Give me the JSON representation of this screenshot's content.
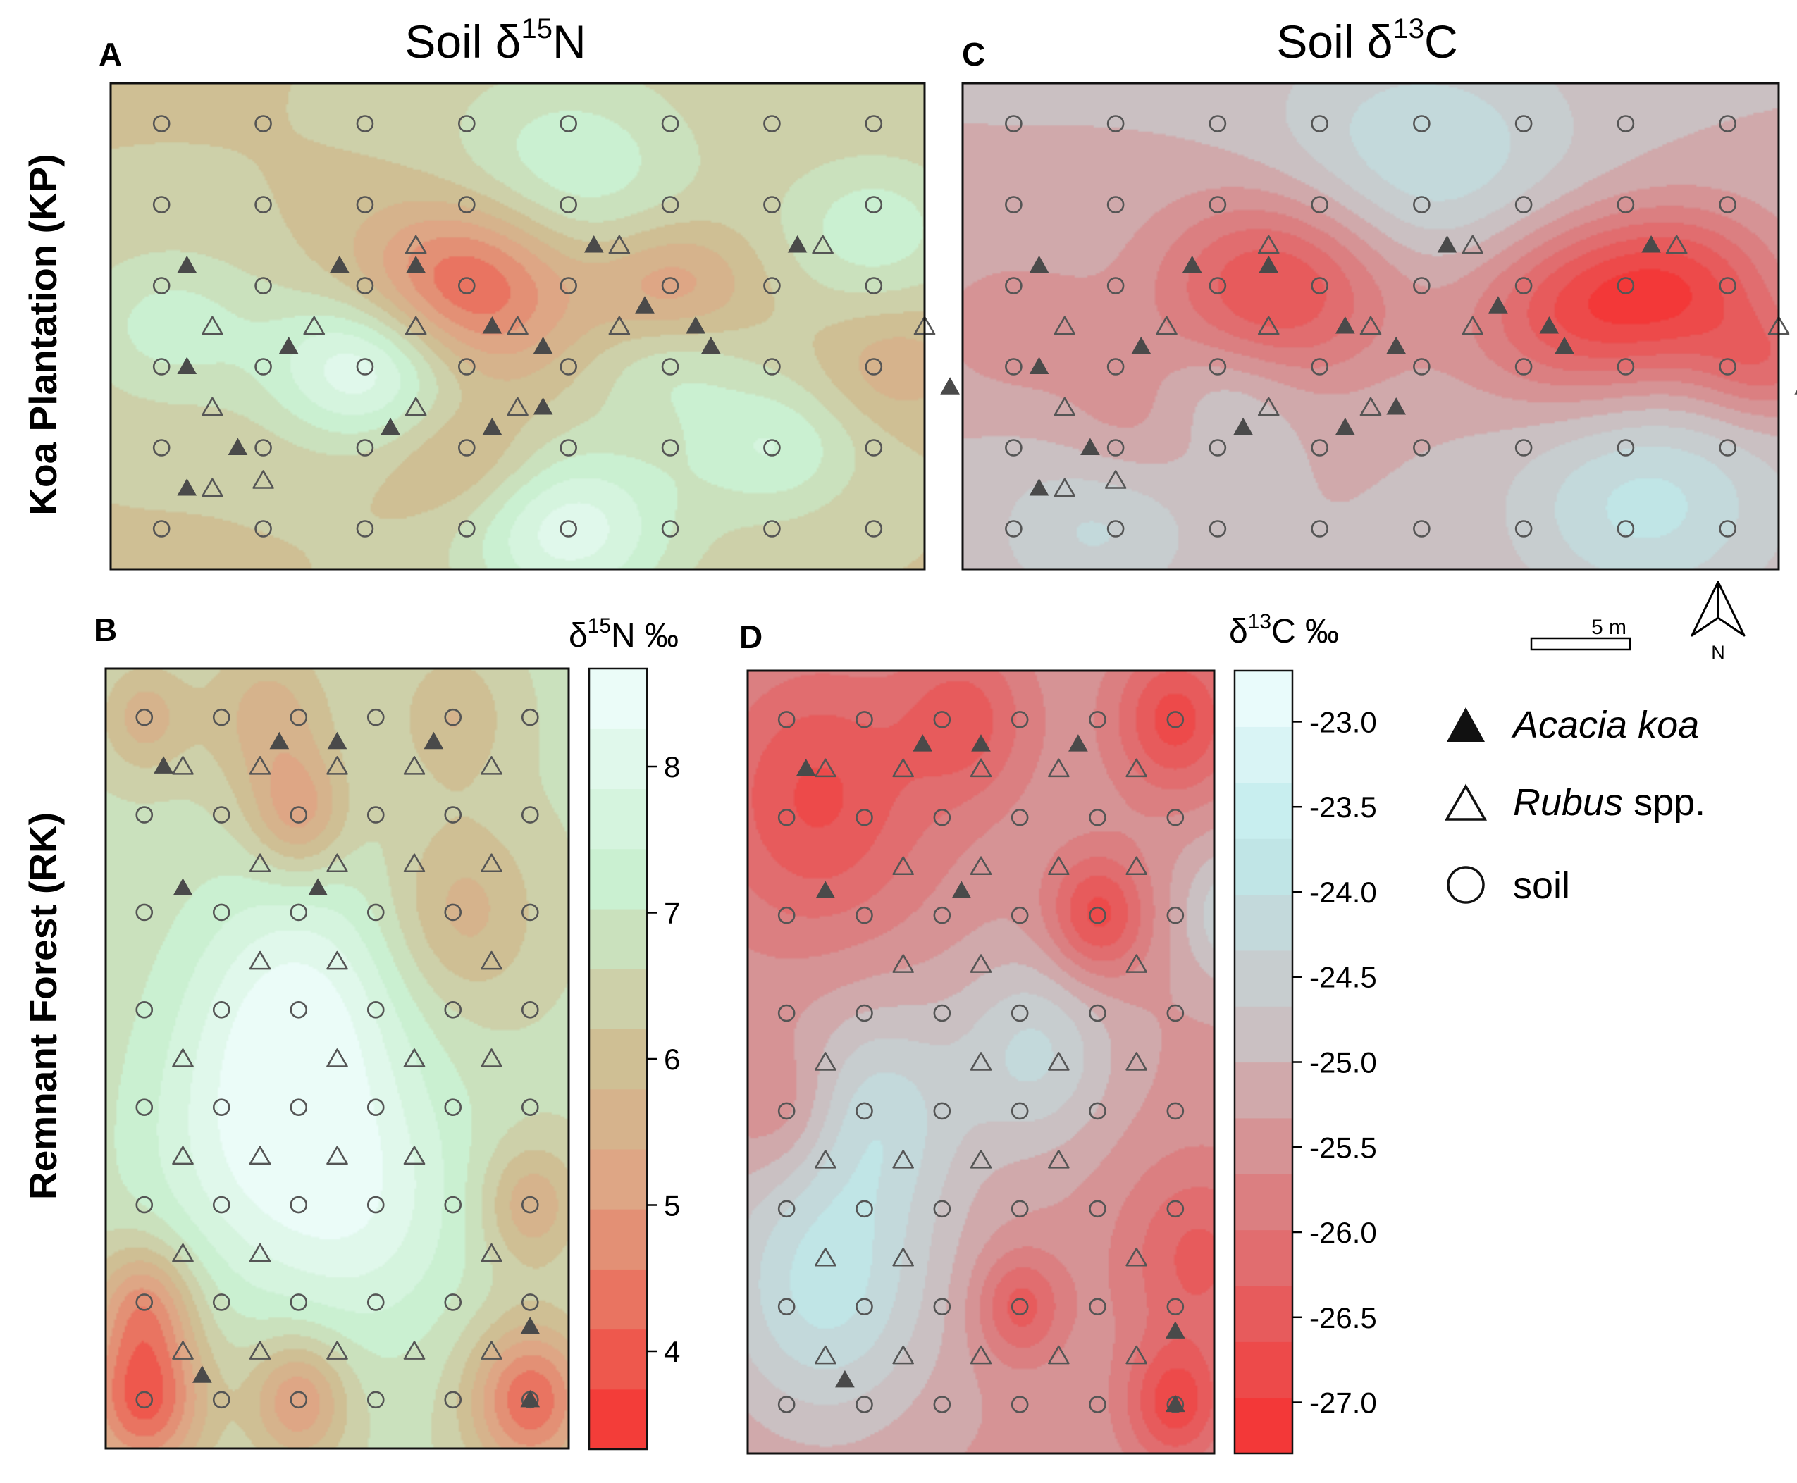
{
  "figure": {
    "row_labels": {
      "top": "Koa Plantation (KP)",
      "bottom": "Remnant Forest (RK)"
    },
    "titles": {
      "n15": {
        "prefix": "Soil δ",
        "sup": "15",
        "suffix": "N"
      },
      "c13": {
        "prefix": "Soil δ",
        "sup": "13",
        "suffix": "C"
      }
    },
    "colorbars": {
      "n15": {
        "prefix": "δ",
        "sup": "15",
        "suffix": "N ‰",
        "ticks": [
          "4",
          "5",
          "6",
          "7",
          "8"
        ],
        "tick_values": [
          4,
          5,
          6,
          7,
          8
        ],
        "range": [
          3.33,
          8.67
        ],
        "bands": 13
      },
      "c13": {
        "prefix": "δ",
        "sup": "13",
        "suffix": "C ‰",
        "ticks": [
          "-23.0",
          "-23.5",
          "-24.0",
          "-24.5",
          "-25.0",
          "-25.5",
          "-26.0",
          "-26.5",
          "-27.0"
        ],
        "tick_values": [
          -23.0,
          -23.5,
          -24.0,
          -24.5,
          -25.0,
          -25.5,
          -26.0,
          -26.5,
          -27.0
        ],
        "range": [
          -27.3,
          -22.7
        ],
        "bands": 14
      }
    },
    "scale_bar": {
      "label": "5 m"
    },
    "north_arrow": {
      "label": "N"
    },
    "legend": [
      {
        "symbol": "filled-triangle",
        "italic": "Acacia koa",
        "plain": ""
      },
      {
        "symbol": "open-triangle",
        "italic": "Rubus",
        "plain": " spp."
      },
      {
        "symbol": "open-circle",
        "italic": "",
        "plain": "soil"
      }
    ],
    "colors": {
      "low_red": "#f62f2f",
      "mid_tan": "#cfbf94",
      "mid_green": "#c8efcf",
      "high_white": "#f1fefe",
      "mid_grey": "#c9c4c6",
      "mid_cyan": "#bfeaeb",
      "marker": "#555555",
      "frame": "#111111"
    }
  },
  "chart_data": [
    {
      "panel": "A",
      "type": "heatmap",
      "variable": "Soil δ15N",
      "site": "Koa Plantation (KP)",
      "grid_cols": 8,
      "grid_rows": 6,
      "base_value": 6.2,
      "anomalies": [
        {
          "col": 3.0,
          "row": 2.0,
          "value": 3.9,
          "spread": 0.75
        },
        {
          "col": 5.0,
          "row": 2.0,
          "value": 5.0,
          "spread": 0.55
        },
        {
          "col": 2.0,
          "row": 3.0,
          "value": 8.3,
          "spread": 0.65
        },
        {
          "col": 4.0,
          "row": 0.6,
          "value": 7.4,
          "spread": 0.9
        },
        {
          "col": 4.0,
          "row": 5.0,
          "value": 8.1,
          "spread": 0.75
        },
        {
          "col": 0.1,
          "row": 2.5,
          "value": 7.2,
          "spread": 0.7
        },
        {
          "col": 7.0,
          "row": 1.3,
          "value": 7.3,
          "spread": 0.65
        },
        {
          "col": 6.0,
          "row": 4.0,
          "value": 7.4,
          "spread": 0.6
        },
        {
          "col": 3.0,
          "row": 4.2,
          "value": 5.4,
          "spread": 0.55
        },
        {
          "col": 7.2,
          "row": 3.0,
          "value": 5.5,
          "spread": 0.5
        },
        {
          "col": 5.0,
          "row": 3.0,
          "value": 7.0,
          "spread": 0.55
        }
      ],
      "koa_trees": [
        [
          0.25,
          1.75
        ],
        [
          1.75,
          1.75
        ],
        [
          2.5,
          1.75
        ],
        [
          4.25,
          1.5
        ],
        [
          6.25,
          1.5
        ],
        [
          4.75,
          2.25
        ],
        [
          3.25,
          2.5
        ],
        [
          5.4,
          2.75
        ],
        [
          1.25,
          2.75
        ],
        [
          0.25,
          3.0
        ],
        [
          3.75,
          2.75
        ],
        [
          5.25,
          2.5
        ],
        [
          7.75,
          3.25
        ],
        [
          3.75,
          3.5
        ],
        [
          2.25,
          3.75
        ],
        [
          3.25,
          3.75
        ],
        [
          0.75,
          4.0
        ],
        [
          0.25,
          4.5
        ]
      ],
      "rubus": [
        [
          2.5,
          1.5
        ],
        [
          4.5,
          1.5
        ],
        [
          6.5,
          1.5
        ],
        [
          0.5,
          2.5
        ],
        [
          1.5,
          2.5
        ],
        [
          2.5,
          2.5
        ],
        [
          3.5,
          2.5
        ],
        [
          4.5,
          2.5
        ],
        [
          7.5,
          2.5
        ],
        [
          0.5,
          3.5
        ],
        [
          2.5,
          3.5
        ],
        [
          3.5,
          3.5
        ],
        [
          1.0,
          4.4
        ],
        [
          0.5,
          4.5
        ]
      ]
    },
    {
      "panel": "C",
      "type": "heatmap",
      "variable": "Soil δ13C",
      "site": "Koa Plantation (KP)",
      "grid_cols": 8,
      "grid_rows": 6,
      "base_value": -25.0,
      "anomalies": [
        {
          "col": 2.6,
          "row": 2.0,
          "value": -26.8,
          "spread": 0.85
        },
        {
          "col": 5.5,
          "row": 2.3,
          "value": -26.6,
          "spread": 0.8
        },
        {
          "col": 6.6,
          "row": 2.0,
          "value": -26.4,
          "spread": 0.7
        },
        {
          "col": 4.0,
          "row": 0.5,
          "value": -24.0,
          "spread": 1.1
        },
        {
          "col": 6.2,
          "row": 4.7,
          "value": -23.9,
          "spread": 0.9
        },
        {
          "col": 0.8,
          "row": 5.0,
          "value": -24.3,
          "spread": 0.7
        },
        {
          "col": 2.0,
          "row": 3.4,
          "value": -24.3,
          "spread": 0.55
        },
        {
          "col": 0.0,
          "row": 2.5,
          "value": -25.6,
          "spread": 0.6
        },
        {
          "col": 1.3,
          "row": 3.6,
          "value": -25.6,
          "spread": 0.6
        },
        {
          "col": 7.4,
          "row": 3.0,
          "value": -26.0,
          "spread": 0.5
        }
      ],
      "koa_trees": [
        [
          0.25,
          1.75
        ],
        [
          1.75,
          1.75
        ],
        [
          2.5,
          1.75
        ],
        [
          4.25,
          1.5
        ],
        [
          6.25,
          1.5
        ],
        [
          4.75,
          2.25
        ],
        [
          3.25,
          2.5
        ],
        [
          5.4,
          2.75
        ],
        [
          1.25,
          2.75
        ],
        [
          0.25,
          3.0
        ],
        [
          3.75,
          2.75
        ],
        [
          5.25,
          2.5
        ],
        [
          7.75,
          3.25
        ],
        [
          3.75,
          3.5
        ],
        [
          2.25,
          3.75
        ],
        [
          3.25,
          3.75
        ],
        [
          0.75,
          4.0
        ],
        [
          0.25,
          4.5
        ]
      ],
      "rubus": [
        [
          2.5,
          1.5
        ],
        [
          4.5,
          1.5
        ],
        [
          6.5,
          1.5
        ],
        [
          0.5,
          2.5
        ],
        [
          1.5,
          2.5
        ],
        [
          2.5,
          2.5
        ],
        [
          3.5,
          2.5
        ],
        [
          4.5,
          2.5
        ],
        [
          7.5,
          2.5
        ],
        [
          0.5,
          3.5
        ],
        [
          2.5,
          3.5
        ],
        [
          3.5,
          3.5
        ],
        [
          1.0,
          4.4
        ],
        [
          0.5,
          4.5
        ]
      ]
    },
    {
      "panel": "B",
      "type": "heatmap",
      "variable": "Soil δ15N",
      "site": "Remnant Forest (RK)",
      "grid_cols": 6,
      "grid_rows": 8,
      "base_value": 6.7,
      "anomalies": [
        {
          "col": 2.0,
          "row": 3.0,
          "value": 8.3,
          "spread": 1.0
        },
        {
          "col": 2.8,
          "row": 5.0,
          "value": 8.0,
          "spread": 1.0
        },
        {
          "col": 1.2,
          "row": 4.5,
          "value": 7.7,
          "spread": 1.0
        },
        {
          "col": 0.0,
          "row": 7.0,
          "value": 4.0,
          "spread": 0.55
        },
        {
          "col": 5.0,
          "row": 7.0,
          "value": 4.2,
          "spread": 0.55
        },
        {
          "col": 2.0,
          "row": 7.0,
          "value": 4.9,
          "spread": 0.45
        },
        {
          "col": 0.0,
          "row": 6.0,
          "value": 5.0,
          "spread": 0.45
        },
        {
          "col": 2.0,
          "row": 1.0,
          "value": 5.2,
          "spread": 0.45
        },
        {
          "col": 1.6,
          "row": 0.0,
          "value": 5.6,
          "spread": 0.6
        },
        {
          "col": 4.1,
          "row": 2.0,
          "value": 5.6,
          "spread": 0.7
        },
        {
          "col": 5.0,
          "row": 5.0,
          "value": 5.4,
          "spread": 0.45
        },
        {
          "col": 0.0,
          "row": 0.0,
          "value": 5.6,
          "spread": 0.4
        },
        {
          "col": 4.0,
          "row": 0.0,
          "value": 5.8,
          "spread": 0.5
        }
      ],
      "koa_trees": [
        [
          0.25,
          0.5
        ],
        [
          1.75,
          0.25
        ],
        [
          2.5,
          0.25
        ],
        [
          3.75,
          0.25
        ],
        [
          0.5,
          1.75
        ],
        [
          2.25,
          1.75
        ],
        [
          5.0,
          6.25
        ],
        [
          0.75,
          6.75
        ],
        [
          5.0,
          7.0
        ]
      ],
      "rubus": [
        [
          0.5,
          0.5
        ],
        [
          1.5,
          0.5
        ],
        [
          2.5,
          0.5
        ],
        [
          3.5,
          0.5
        ],
        [
          4.5,
          0.5
        ],
        [
          1.5,
          1.5
        ],
        [
          2.5,
          1.5
        ],
        [
          3.5,
          1.5
        ],
        [
          4.5,
          1.5
        ],
        [
          1.5,
          2.5
        ],
        [
          2.5,
          2.5
        ],
        [
          4.5,
          2.5
        ],
        [
          0.5,
          3.5
        ],
        [
          2.5,
          3.5
        ],
        [
          3.5,
          3.5
        ],
        [
          4.5,
          3.5
        ],
        [
          0.5,
          4.5
        ],
        [
          1.5,
          4.5
        ],
        [
          2.5,
          4.5
        ],
        [
          3.5,
          4.5
        ],
        [
          0.5,
          5.5
        ],
        [
          1.5,
          5.5
        ],
        [
          4.5,
          5.5
        ],
        [
          0.5,
          6.5
        ],
        [
          1.5,
          6.5
        ],
        [
          2.5,
          6.5
        ],
        [
          3.5,
          6.5
        ],
        [
          4.5,
          6.5
        ]
      ]
    },
    {
      "panel": "D",
      "type": "heatmap",
      "variable": "Soil δ13C",
      "site": "Remnant Forest (RK)",
      "grid_cols": 6,
      "grid_rows": 8,
      "base_value": -25.4,
      "anomalies": [
        {
          "col": 0.5,
          "row": 5.8,
          "value": -23.9,
          "spread": 1.0
        },
        {
          "col": 1.2,
          "row": 4.0,
          "value": -24.3,
          "spread": 0.8
        },
        {
          "col": 3.2,
          "row": 3.4,
          "value": -24.3,
          "spread": 0.7
        },
        {
          "col": 5.8,
          "row": 2.0,
          "value": -24.3,
          "spread": 0.5
        },
        {
          "col": 0.4,
          "row": 0.8,
          "value": -26.7,
          "spread": 1.0
        },
        {
          "col": 2.3,
          "row": 0.0,
          "value": -26.4,
          "spread": 0.6
        },
        {
          "col": 5.0,
          "row": 0.0,
          "value": -26.8,
          "spread": 0.55
        },
        {
          "col": 4.0,
          "row": 2.0,
          "value": -26.8,
          "spread": 0.45
        },
        {
          "col": 5.3,
          "row": 5.5,
          "value": -26.4,
          "spread": 0.7
        },
        {
          "col": 5.0,
          "row": 7.0,
          "value": -26.8,
          "spread": 0.45
        },
        {
          "col": 3.0,
          "row": 6.0,
          "value": -26.5,
          "spread": 0.4
        },
        {
          "col": 0.0,
          "row": 4.0,
          "value": -26.0,
          "spread": 0.5
        }
      ],
      "koa_trees": [
        [
          0.25,
          0.5
        ],
        [
          1.75,
          0.25
        ],
        [
          2.5,
          0.25
        ],
        [
          3.75,
          0.25
        ],
        [
          0.5,
          1.75
        ],
        [
          2.25,
          1.75
        ],
        [
          5.0,
          6.25
        ],
        [
          0.75,
          6.75
        ],
        [
          5.0,
          7.0
        ]
      ],
      "rubus": [
        [
          0.5,
          0.5
        ],
        [
          1.5,
          0.5
        ],
        [
          2.5,
          0.5
        ],
        [
          3.5,
          0.5
        ],
        [
          4.5,
          0.5
        ],
        [
          1.5,
          1.5
        ],
        [
          2.5,
          1.5
        ],
        [
          3.5,
          1.5
        ],
        [
          4.5,
          1.5
        ],
        [
          1.5,
          2.5
        ],
        [
          2.5,
          2.5
        ],
        [
          4.5,
          2.5
        ],
        [
          0.5,
          3.5
        ],
        [
          2.5,
          3.5
        ],
        [
          3.5,
          3.5
        ],
        [
          4.5,
          3.5
        ],
        [
          0.5,
          4.5
        ],
        [
          1.5,
          4.5
        ],
        [
          2.5,
          4.5
        ],
        [
          3.5,
          4.5
        ],
        [
          0.5,
          5.5
        ],
        [
          1.5,
          5.5
        ],
        [
          4.5,
          5.5
        ],
        [
          0.5,
          6.5
        ],
        [
          1.5,
          6.5
        ],
        [
          2.5,
          6.5
        ],
        [
          3.5,
          6.5
        ],
        [
          4.5,
          6.5
        ]
      ]
    }
  ]
}
